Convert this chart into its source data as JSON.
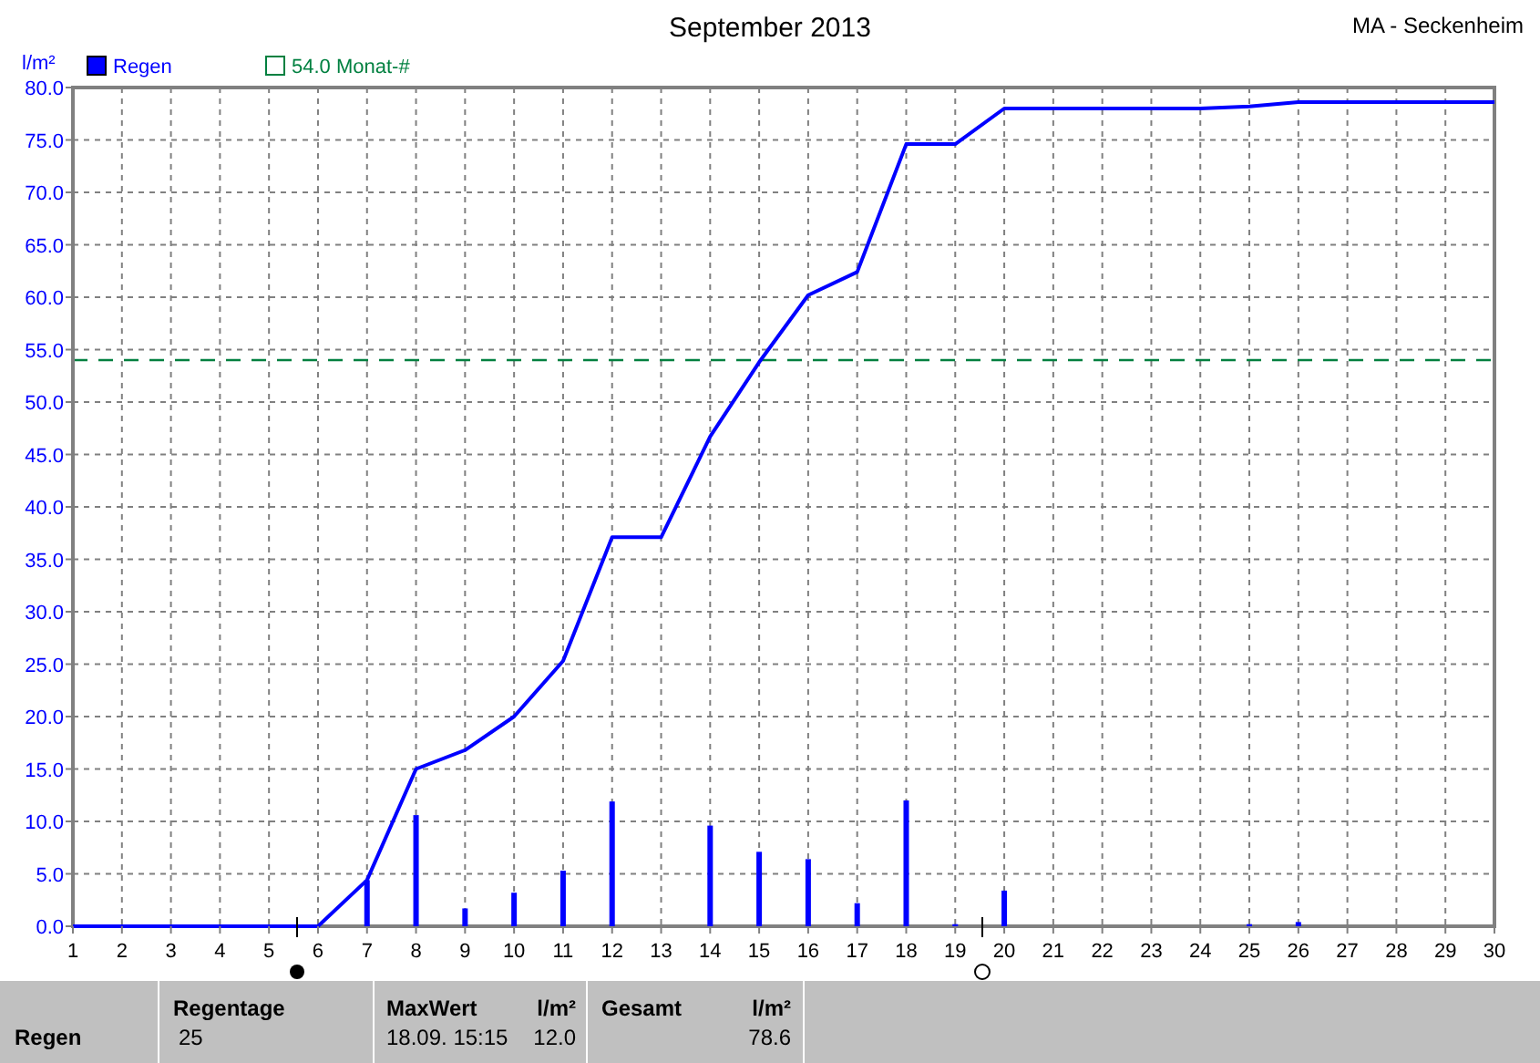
{
  "chart_data": {
    "type": "bar",
    "title": "September 2013",
    "ylabel": "l/m²",
    "series": [
      {
        "name": "Regen",
        "color": "#0000ff",
        "x": [
          7,
          8,
          9,
          10,
          11,
          12,
          14,
          15,
          16,
          17,
          18,
          19,
          20,
          25,
          26
        ],
        "values": [
          4.4,
          10.6,
          1.7,
          3.2,
          5.3,
          11.9,
          9.6,
          7.1,
          6.4,
          2.2,
          12.0,
          0.2,
          3.4,
          0.2,
          0.4
        ]
      },
      {
        "type": "line",
        "color": "#0000ff",
        "x": [
          1,
          6,
          7,
          8,
          9,
          10,
          11,
          12,
          13,
          14,
          15,
          16,
          17,
          18,
          19,
          20,
          24,
          25,
          26,
          30
        ],
        "values": [
          0,
          0,
          4.4,
          15.0,
          16.8,
          20.0,
          25.3,
          37.1,
          37.1,
          46.7,
          53.8,
          60.2,
          62.4,
          74.6,
          74.6,
          78.0,
          78.0,
          78.2,
          78.6,
          78.6
        ]
      }
    ],
    "xlim": [
      1,
      30
    ],
    "xticks": [
      1,
      2,
      3,
      4,
      5,
      6,
      7,
      8,
      9,
      10,
      11,
      12,
      13,
      14,
      15,
      16,
      17,
      18,
      19,
      20,
      21,
      22,
      23,
      24,
      25,
      26,
      27,
      28,
      29,
      30
    ],
    "ylim": [
      0,
      80
    ],
    "yticks": [
      {
        "value": 0,
        "label": "0.0"
      },
      {
        "value": 5,
        "label": "5.0"
      },
      {
        "value": 10,
        "label": "10.0"
      },
      {
        "value": 15,
        "label": "15.0"
      },
      {
        "value": 20,
        "label": "20.0"
      },
      {
        "value": 25,
        "label": "25.0"
      },
      {
        "value": 30,
        "label": "30.0"
      },
      {
        "value": 35,
        "label": "35.0"
      },
      {
        "value": 40,
        "label": "40.0"
      },
      {
        "value": 45,
        "label": "45.0"
      },
      {
        "value": 50,
        "label": "50.0"
      },
      {
        "value": 55,
        "label": "55.0"
      },
      {
        "value": 60,
        "label": "60.0"
      },
      {
        "value": 65,
        "label": "65.0"
      },
      {
        "value": 70,
        "label": "70.0"
      },
      {
        "value": 75,
        "label": "75.0"
      },
      {
        "value": 80,
        "label": "80.0"
      }
    ],
    "ref_lines": [
      {
        "axis": "y",
        "value": 54.0,
        "label": "54.0 Monat-#",
        "color": "#008040",
        "line_style": "dashed"
      }
    ],
    "grid": true,
    "legend": "top left",
    "annotations": [
      "MA - Seckenheim",
      "Regen",
      "Regentage",
      "25",
      "MaxWert",
      "l/m²",
      "18.09.  15:15",
      "12.0",
      "Gesamt",
      "l/m²",
      "78.6"
    ]
  }
}
